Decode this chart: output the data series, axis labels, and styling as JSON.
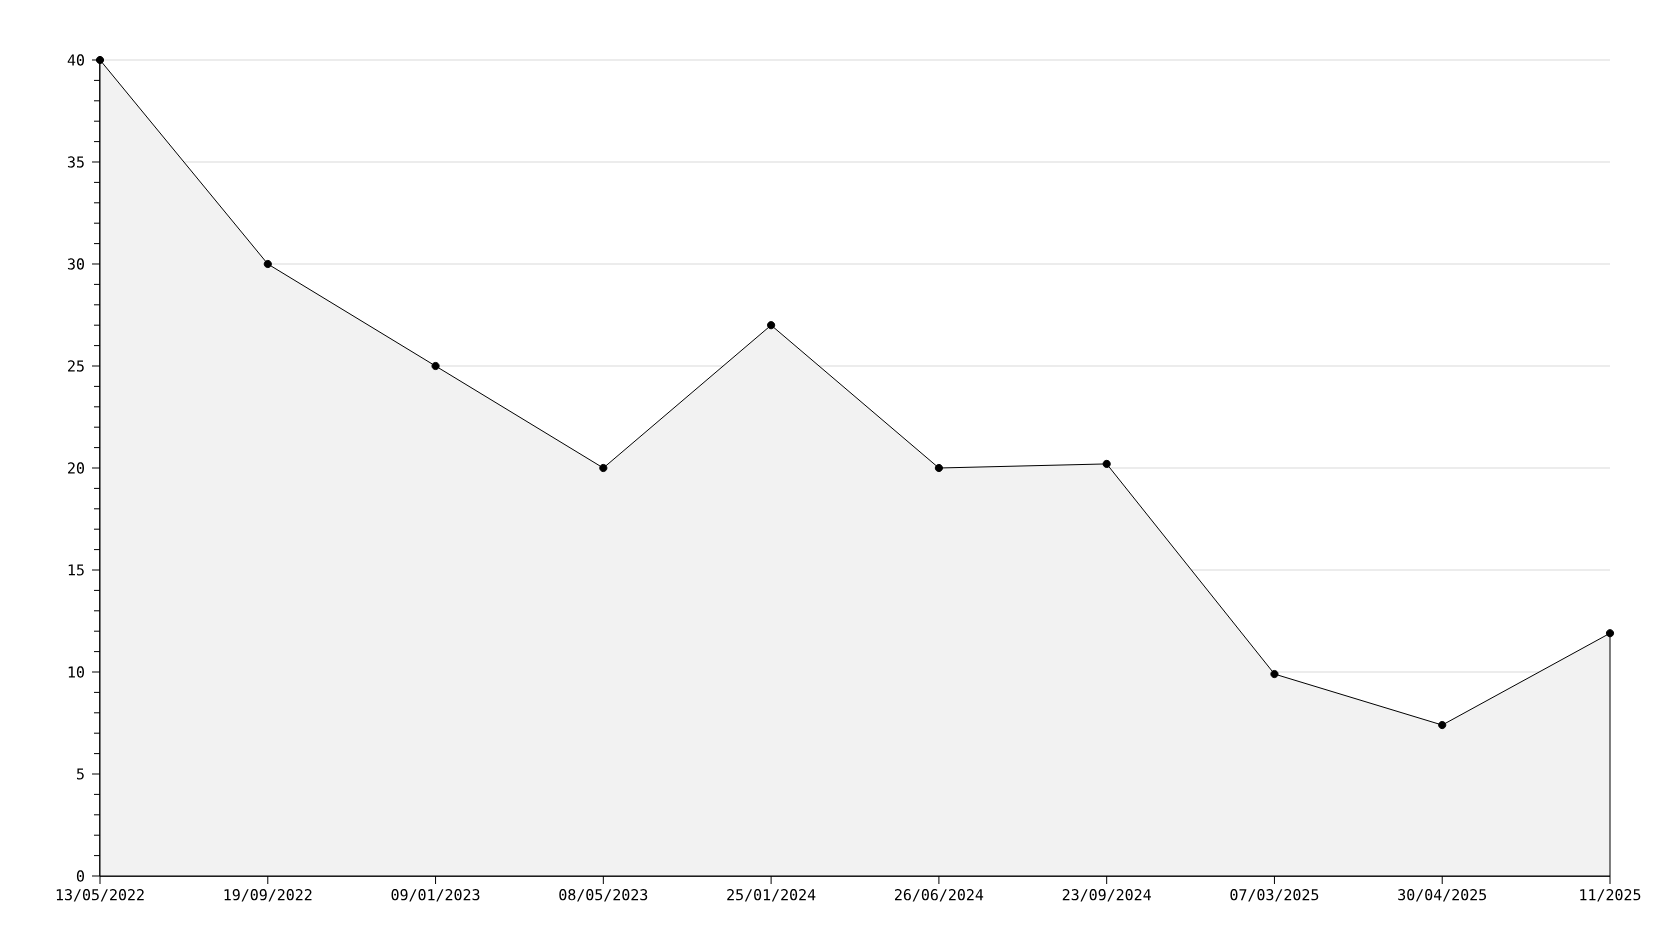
{
  "chart_data": {
    "type": "area",
    "categories": [
      "13/05/2022",
      "19/09/2022",
      "09/01/2023",
      "08/05/2023",
      "25/01/2024",
      "26/06/2024",
      "23/09/2024",
      "07/03/2025",
      "30/04/2025",
      "11/2025"
    ],
    "values": [
      40,
      30,
      25,
      20,
      27,
      20,
      20.2,
      9.9,
      7.4,
      11.9
    ],
    "color": "#f2f2f2",
    "ylim": [
      0,
      40
    ],
    "yticks": [
      0,
      5,
      10,
      15,
      20,
      25,
      30,
      35,
      40
    ],
    "grid": "y",
    "marker": "circle",
    "line_style": "solid"
  }
}
